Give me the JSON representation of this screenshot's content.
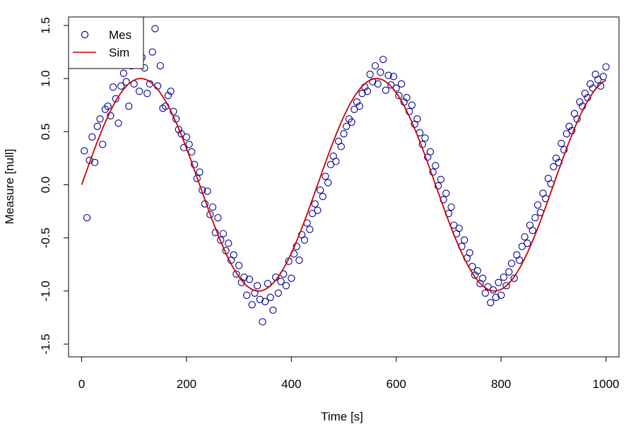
{
  "chart_data": {
    "type": "scatter",
    "xlabel": "Time [s]",
    "ylabel": "Measure [null]",
    "xlim": [
      -25,
      1025
    ],
    "ylim": [
      -1.62,
      1.58
    ],
    "xticks": [
      0,
      200,
      400,
      600,
      800,
      1000
    ],
    "yticks": [
      -1.5,
      -1.0,
      -0.5,
      0.0,
      0.5,
      1.0,
      1.5
    ],
    "xtick_labels": [
      "0",
      "200",
      "400",
      "600",
      "800",
      "1000"
    ],
    "ytick_labels": [
      "-1.5",
      "-1.0",
      "-0.5",
      "0.0",
      "0.5",
      "1.0",
      "1.5"
    ],
    "grid": false,
    "legend": {
      "position": "top-left",
      "entries": [
        "Mes",
        "Sim"
      ]
    },
    "series": [
      {
        "name": "Mes",
        "kind": "scatter",
        "marker": "open-circle",
        "color": "#00008b",
        "x": [
          5,
          10,
          15,
          20,
          25,
          30,
          35,
          40,
          45,
          50,
          55,
          60,
          65,
          70,
          75,
          80,
          85,
          90,
          95,
          100,
          105,
          110,
          115,
          120,
          125,
          130,
          135,
          140,
          145,
          150,
          155,
          160,
          165,
          170,
          175,
          180,
          185,
          190,
          195,
          200,
          205,
          210,
          215,
          220,
          225,
          230,
          235,
          240,
          245,
          250,
          255,
          260,
          265,
          270,
          275,
          280,
          285,
          290,
          295,
          300,
          305,
          310,
          315,
          320,
          325,
          330,
          335,
          340,
          345,
          350,
          355,
          360,
          365,
          370,
          375,
          380,
          385,
          390,
          395,
          400,
          405,
          410,
          415,
          420,
          425,
          430,
          435,
          440,
          445,
          450,
          455,
          460,
          465,
          470,
          475,
          480,
          485,
          490,
          495,
          500,
          505,
          510,
          515,
          520,
          525,
          530,
          535,
          540,
          545,
          550,
          555,
          560,
          565,
          570,
          575,
          580,
          585,
          590,
          595,
          600,
          605,
          610,
          615,
          620,
          625,
          630,
          635,
          640,
          645,
          650,
          655,
          660,
          665,
          670,
          675,
          680,
          685,
          690,
          695,
          700,
          705,
          710,
          715,
          720,
          725,
          730,
          735,
          740,
          745,
          750,
          755,
          760,
          765,
          770,
          775,
          780,
          785,
          790,
          795,
          800,
          805,
          810,
          815,
          820,
          825,
          830,
          835,
          840,
          845,
          850,
          855,
          860,
          865,
          870,
          875,
          880,
          885,
          890,
          895,
          900,
          905,
          910,
          915,
          920,
          925,
          930,
          935,
          940,
          945,
          950,
          955,
          960,
          965,
          970,
          975,
          980,
          985,
          990,
          995,
          1000
        ],
        "y": [
          0.32,
          -0.31,
          0.23,
          0.45,
          0.21,
          0.55,
          0.62,
          0.38,
          0.71,
          0.74,
          0.65,
          0.92,
          0.81,
          0.58,
          0.93,
          1.05,
          0.97,
          0.74,
          1.12,
          0.95,
          1.18,
          0.88,
          1.2,
          1.1,
          0.86,
          0.95,
          1.25,
          1.47,
          0.93,
          1.12,
          0.72,
          0.74,
          0.84,
          0.88,
          0.69,
          0.62,
          0.52,
          0.48,
          0.35,
          0.45,
          0.38,
          0.31,
          0.19,
          0.06,
          0.12,
          -0.05,
          -0.18,
          -0.06,
          -0.28,
          -0.21,
          -0.45,
          -0.31,
          -0.52,
          -0.46,
          -0.62,
          -0.55,
          -0.71,
          -0.66,
          -0.84,
          -0.76,
          -0.92,
          -0.87,
          -1.04,
          -0.89,
          -1.13,
          -1.02,
          -0.95,
          -1.08,
          -1.29,
          -1.1,
          -0.93,
          -1.06,
          -1.18,
          -0.87,
          -1.02,
          -0.91,
          -0.84,
          -0.95,
          -0.72,
          -0.88,
          -0.65,
          -0.58,
          -0.71,
          -0.47,
          -0.52,
          -0.36,
          -0.42,
          -0.27,
          -0.18,
          -0.24,
          -0.05,
          -0.11,
          0.08,
          0.02,
          0.19,
          0.27,
          0.22,
          0.41,
          0.36,
          0.48,
          0.55,
          0.62,
          0.59,
          0.71,
          0.78,
          0.74,
          0.86,
          0.92,
          0.88,
          1.04,
          0.97,
          1.12,
          0.95,
          1.06,
          1.18,
          0.89,
          1.03,
          0.94,
          1.02,
          0.91,
          0.84,
          0.95,
          0.78,
          0.82,
          0.69,
          0.75,
          0.57,
          0.62,
          0.49,
          0.38,
          0.44,
          0.26,
          0.31,
          0.12,
          0.18,
          -0.01,
          0.05,
          -0.14,
          -0.08,
          -0.27,
          -0.21,
          -0.38,
          -0.46,
          -0.41,
          -0.58,
          -0.52,
          -0.69,
          -0.64,
          -0.77,
          -0.85,
          -0.81,
          -0.93,
          -0.88,
          -1.02,
          -0.96,
          -1.11,
          -0.99,
          -1.06,
          -0.92,
          -1.04,
          -0.87,
          -0.95,
          -0.82,
          -0.74,
          -0.88,
          -0.66,
          -0.71,
          -0.58,
          -0.49,
          -0.55,
          -0.38,
          -0.43,
          -0.31,
          -0.19,
          -0.26,
          -0.08,
          -0.13,
          0.06,
          0.01,
          0.17,
          0.25,
          0.21,
          0.39,
          0.33,
          0.48,
          0.55,
          0.51,
          0.67,
          0.62,
          0.78,
          0.74,
          0.86,
          0.82,
          0.95,
          0.91,
          1.04,
          0.99,
          0.93,
          1.02,
          1.11
        ]
      },
      {
        "name": "Sim",
        "kind": "line",
        "color": "#cc0000",
        "function": "sin(2*pi*x/450)",
        "x_range": [
          0,
          1000
        ]
      }
    ]
  }
}
